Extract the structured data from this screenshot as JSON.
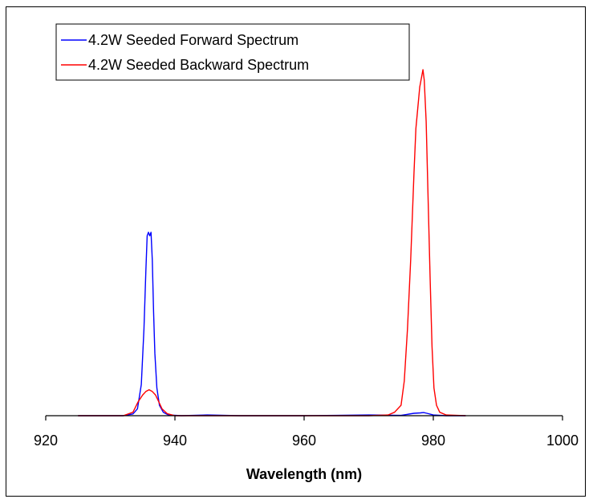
{
  "chart_data": {
    "type": "line",
    "title": "",
    "xlabel": "Wavelength (nm)",
    "ylabel": "",
    "xlim": [
      920,
      1000
    ],
    "ylim": [
      0,
      1
    ],
    "x_ticks": [
      920,
      940,
      960,
      980,
      1000
    ],
    "y_ticks_shown": false,
    "grid": false,
    "legend_position": "top-left",
    "series": [
      {
        "name": "4.2W Seeded Forward Spectrum",
        "color": "#0000ff",
        "x": [
          925,
          932,
          933.5,
          934.2,
          934.8,
          935.2,
          935.5,
          935.7,
          935.9,
          936.1,
          936.3,
          936.5,
          936.7,
          936.9,
          937.2,
          937.6,
          938.2,
          939,
          941,
          945,
          950,
          960,
          965,
          970,
          975,
          976,
          977,
          978,
          978.5,
          979,
          980,
          982,
          985
        ],
        "y": [
          0,
          0,
          0.005,
          0.02,
          0.09,
          0.25,
          0.42,
          0.52,
          0.53,
          0.52,
          0.53,
          0.45,
          0.3,
          0.18,
          0.08,
          0.03,
          0.01,
          0.002,
          0,
          0.002,
          0,
          0,
          0.001,
          0.002,
          0.001,
          0.004,
          0.007,
          0.008,
          0.009,
          0.007,
          0.002,
          0,
          0
        ]
      },
      {
        "name": "4.2W Seeded Backward Spectrum",
        "color": "#ff0000",
        "x": [
          925,
          932,
          933.5,
          934.3,
          935,
          935.5,
          936,
          936.5,
          937,
          937.5,
          938,
          938.8,
          940,
          950,
          960,
          970,
          973,
          974,
          974.5,
          975,
          975.5,
          976,
          976.5,
          977,
          977.3,
          977.6,
          977.9,
          978.2,
          978.4,
          978.6,
          978.9,
          979.2,
          979.5,
          979.8,
          980.1,
          980.5,
          981,
          982,
          985
        ],
        "y": [
          0,
          0,
          0.01,
          0.04,
          0.06,
          0.07,
          0.075,
          0.07,
          0.06,
          0.04,
          0.02,
          0.006,
          0,
          0,
          0,
          0,
          0.002,
          0.01,
          0.02,
          0.03,
          0.1,
          0.25,
          0.45,
          0.7,
          0.83,
          0.89,
          0.95,
          0.98,
          1.0,
          0.97,
          0.85,
          0.62,
          0.4,
          0.2,
          0.08,
          0.03,
          0.01,
          0.002,
          0
        ]
      }
    ]
  }
}
